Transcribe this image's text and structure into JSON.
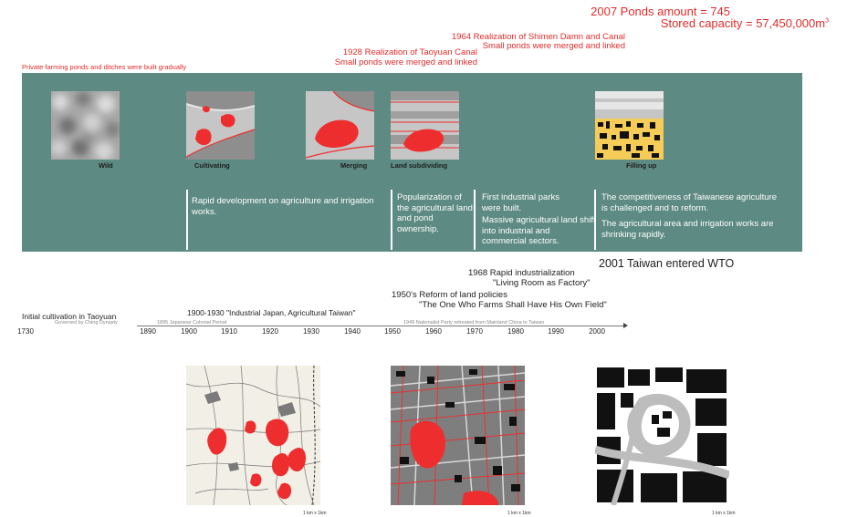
{
  "headers": {
    "ponds_amount": "2007 Ponds amount = 745",
    "stored_capacity": "Stored capacity  = 57,450,000m",
    "stored_capacity_sup": "3",
    "shimen_title": "1964 Realization of Shimen Damn and Canal",
    "shimen_sub": "Small ponds were merged and linked",
    "taoyuan_title": "1928 Realization of Taoyuan Canal",
    "taoyuan_sub": "Small ponds were merged and linked",
    "private_ponds": "Private farming ponds and ditches were built gradually"
  },
  "stages": [
    "Wild",
    "Cultivating",
    "Merging",
    "Land subdividing",
    "Filling up"
  ],
  "band_notes": {
    "agriculture": "Rapid development on agriculture and irrigation works.",
    "popularization": "Popularization of the agricultural land and pond ownership.",
    "industrial_1": "First industrial parks were built.",
    "industrial_2": "Massive agricultural land shift  into industrial and commercial sectors.",
    "competitiveness": "The competitiveness of Taiwanese agriculture is challenged and to reform.",
    "shrinking": "The agricultural area and irrigation works are shrinking rapidly."
  },
  "events": {
    "wto": "2001 Taiwan entered WTO",
    "industrialization_title": "1968  Rapid industrialization",
    "industrialization_sub": "\"Living Room as Factory\"",
    "land_reform_title": "1950's Reform of land policies",
    "land_reform_sub": "\"The One Who Farms Shall Have His Own Field\"",
    "industrial_japan": "1900-1930 \"Industrial Japan, Agricultural Taiwan\"",
    "initial_cultivation": "Initial cultivation in Taoyuan"
  },
  "periods": {
    "ching": "Governed by Ching Dynasty",
    "japanese": "1895 Japanese Colonial Period",
    "nationalist": "1949 Nationalist Party retreated from Mainland China to Taiwan"
  },
  "timeline_ticks": [
    "1730",
    "1890",
    "1900",
    "1910",
    "1920",
    "1930",
    "1940",
    "1950",
    "1960",
    "1970",
    "1980",
    "1990",
    "2000"
  ],
  "map_scale": "1 km x 1km",
  "colors": {
    "band": "#5d8a82",
    "accent_red": "#e02b2b",
    "pond_red": "#ee2e2e",
    "fill_yellow": "#f6cc59"
  }
}
